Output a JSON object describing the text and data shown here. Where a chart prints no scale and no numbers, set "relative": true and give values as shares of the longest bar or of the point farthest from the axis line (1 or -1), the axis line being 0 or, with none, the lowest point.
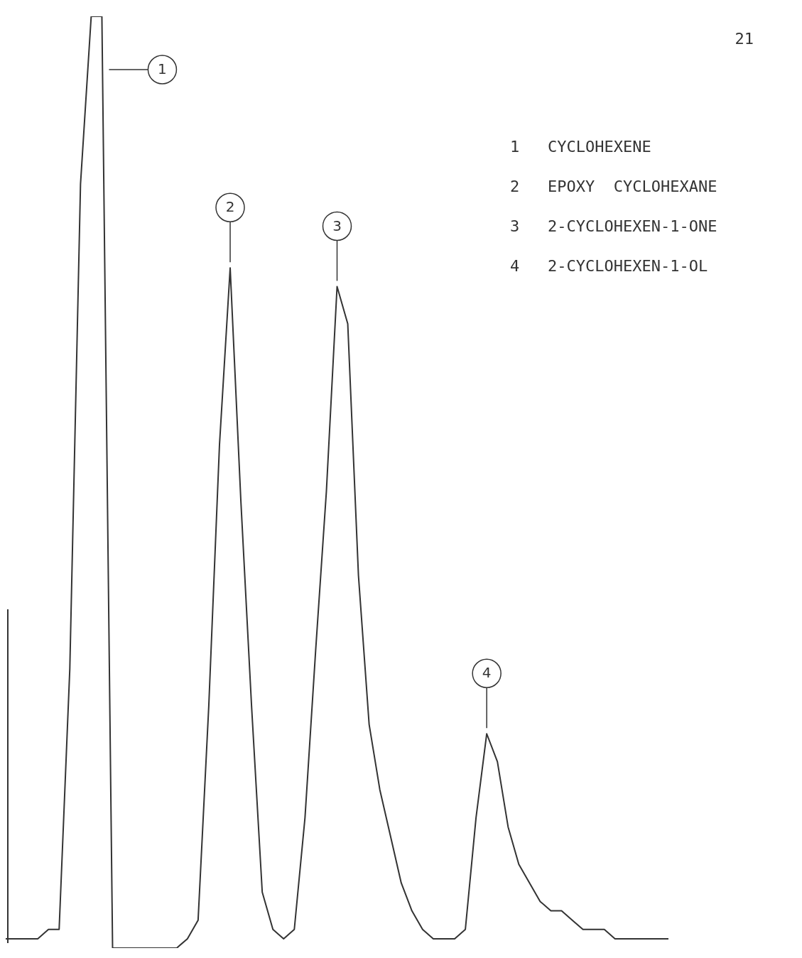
{
  "chart_data": {
    "type": "line",
    "relative": true,
    "color": "#333333",
    "marker": "none",
    "legend": false,
    "categories": [
      null,
      null,
      null,
      null,
      null,
      null,
      null,
      null,
      null,
      null,
      null,
      null,
      null,
      null,
      null,
      null,
      null,
      null,
      null,
      null,
      null,
      null,
      null,
      null,
      null,
      null,
      null,
      null,
      null,
      null,
      null,
      null,
      null,
      null,
      null,
      null,
      null,
      null,
      null,
      null,
      null,
      null,
      null,
      null,
      null,
      null,
      null,
      null,
      null,
      null,
      null,
      null,
      null,
      null,
      null,
      null,
      null,
      null,
      null,
      null,
      null,
      null,
      null
    ],
    "values": [
      0.01,
      0.01,
      0.01,
      0.01,
      0.02,
      0.02,
      0.3,
      0.82,
      1,
      1,
      0,
      0,
      0,
      0,
      0,
      0,
      0,
      0.01,
      0.03,
      0.26,
      0.54,
      0.73,
      0.48,
      0.26,
      0.06,
      0.02,
      0.01,
      0.02,
      0.14,
      0.32,
      0.49,
      0.71,
      0.67,
      0.4,
      0.24,
      0.17,
      0.12,
      0.07,
      0.04,
      0.02,
      0.01,
      0.01,
      0.01,
      0.02,
      0.14,
      0.23,
      0.2,
      0.13,
      0.09,
      0.07,
      0.05,
      0.04,
      0.04,
      0.03,
      0.02,
      0.02,
      0.02,
      0.01,
      0.01,
      0.01,
      0.01,
      0.01,
      0.01
    ],
    "annotations": [
      "21",
      "1   CYCLOHEXENE",
      "2   EPOXY  CYCLOHEXANE",
      "3   2-CYCLOHEXEN-1-ONE",
      "4   2-CYCLOHEXEN-1-OL",
      "1",
      "2",
      "3",
      "4"
    ]
  }
}
